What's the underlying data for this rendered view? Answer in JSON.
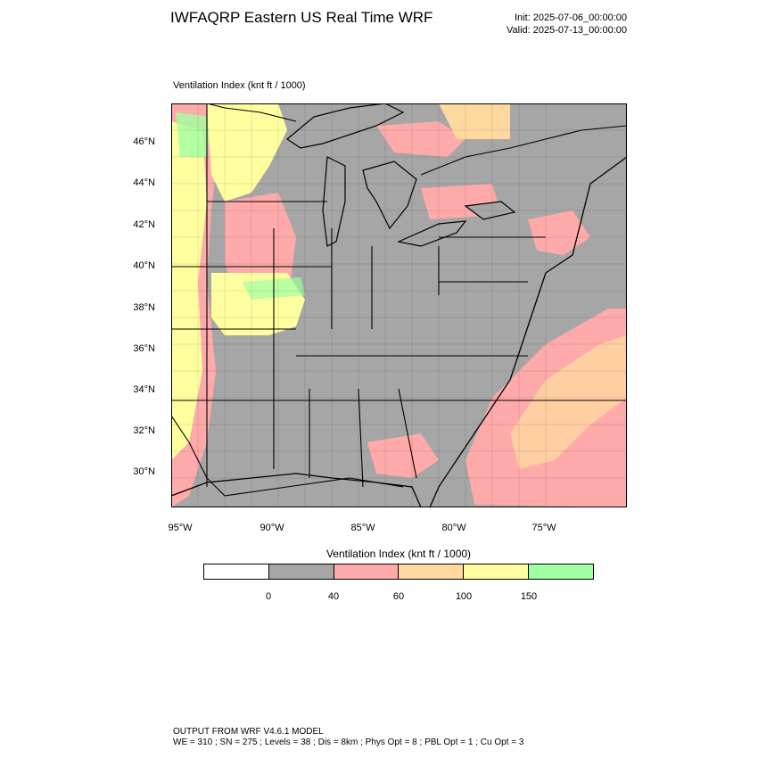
{
  "header": {
    "title": "IWFAQRP Eastern US Real Time WRF",
    "init": "Init: 2025-07-06_00:00:00",
    "valid": "Valid: 2025-07-13_00:00:00"
  },
  "map": {
    "label": "Ventilation Index   (knt ft / 1000)",
    "lat_labels": [
      "46°N",
      "44°N",
      "42°N",
      "40°N",
      "38°N",
      "36°N",
      "34°N",
      "32°N",
      "30°N"
    ],
    "lon_labels": [
      "95°W",
      "90°W",
      "85°W",
      "80°W",
      "75°W"
    ]
  },
  "colorbar": {
    "title": "Ventilation Index  (knt ft / 1000)",
    "colors": [
      "#ffffff",
      "#a6a6a6",
      "#ffaaaa",
      "#ffd8a0",
      "#ffffa0",
      "#a0ffa0"
    ],
    "tick_labels": [
      "0",
      "40",
      "60",
      "100",
      "150"
    ]
  },
  "footer": {
    "line1": "OUTPUT FROM WRF V4.6.1 MODEL",
    "line2": "WE = 310 ; SN = 275 ; Levels = 38 ; Dis = 8km ; Phys Opt = 8 ; PBL Opt = 1 ; Cu Opt = 3"
  }
}
